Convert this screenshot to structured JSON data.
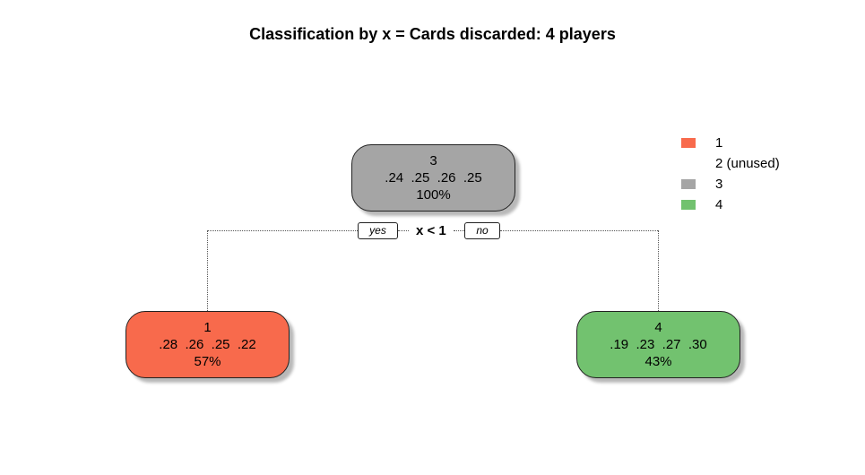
{
  "title": "Classification by x = Cards discarded: 4 players",
  "colors": {
    "class1": "#f86a4c",
    "class3": "#a5a5a5",
    "class4": "#72c26f"
  },
  "tree": {
    "root": {
      "class": "3",
      "probs": ".24  .25  .26  .25",
      "pct": "100%"
    },
    "split": {
      "rule": "x < 1",
      "yes": "yes",
      "no": "no"
    },
    "left": {
      "class": "1",
      "probs": ".28  .26  .25  .22",
      "pct": "57%"
    },
    "right": {
      "class": "4",
      "probs": ".19  .23  .27  .30",
      "pct": "43%"
    }
  },
  "legend": [
    {
      "label": "1",
      "color": "#f86a4c"
    },
    {
      "label": "2 (unused)",
      "color": ""
    },
    {
      "label": "3",
      "color": "#a5a5a5"
    },
    {
      "label": "4",
      "color": "#72c26f"
    }
  ]
}
